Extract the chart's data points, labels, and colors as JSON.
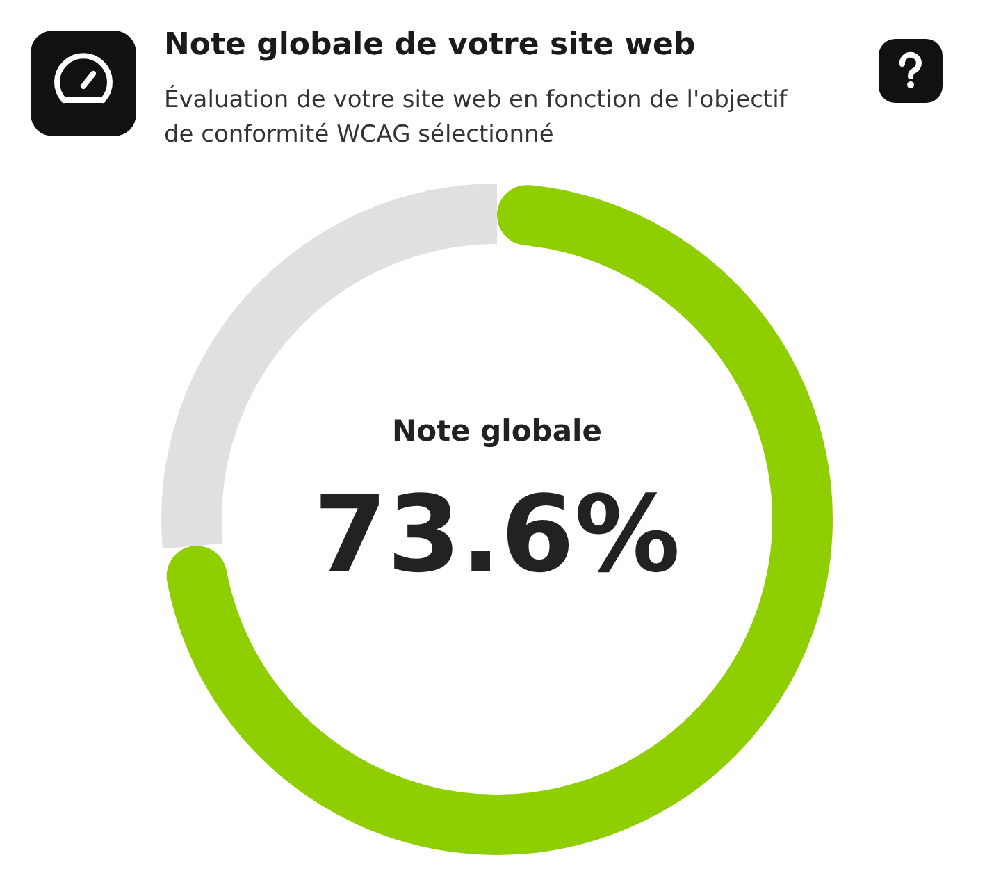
{
  "chart_data": {
    "type": "donut",
    "title": "Note globale de votre site web",
    "subtitle": "Évaluation de votre site web en fonction de l'objectif de conformité WCAG sélectionné",
    "categories": [
      null,
      null
    ],
    "values": [
      73.6,
      26.4
    ],
    "colors": [
      "#8fce00",
      "#e0e0e0"
    ],
    "value_labels": [
      "73.6%",
      null
    ],
    "annotations": [
      "Note globale"
    ]
  }
}
